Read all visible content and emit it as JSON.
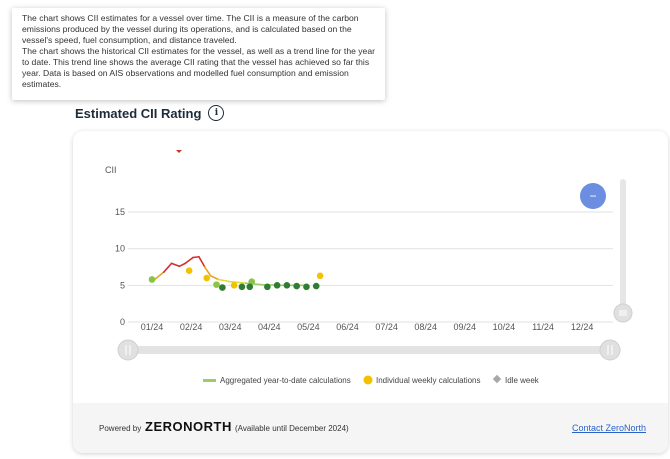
{
  "tooltip": {
    "para1": "The chart shows CII estimates for a vessel over time. The CII is a measure of the carbon emissions produced by the vessel during its operations, and is calculated based on the vessel's speed, fuel consumption, and distance traveled.",
    "para2": "The chart shows the historical CII estimates for the vessel, as well as a trend line for the year to date. This trend line shows the average CII rating that the vessel has achieved so far this year. Data is based on AIS observations and modelled fuel consumption and emission estimates."
  },
  "heading": {
    "title": "Estimated CII Rating",
    "info_icon": "i"
  },
  "zoom_button": {
    "symbol": "−",
    "color": "#6b8ee0"
  },
  "colors": {
    "aggregated_line": "#9ccc65",
    "weekly_yellow": "#f2c200",
    "idle_grey": "#a8a8a8",
    "dark_green": "#2e7d32",
    "light_green": "#8bc34a",
    "red_segment": "#d32f2f",
    "grid": "#e2e2e2"
  },
  "chart_data": {
    "type": "line",
    "ylabel": "CII",
    "ylim": [
      0,
      17
    ],
    "y_ticks": [
      "0",
      "5",
      "10",
      "15"
    ],
    "y_tick_values": [
      0,
      5,
      10,
      15
    ],
    "x_ticks": [
      "01/24",
      "02/24",
      "03/24",
      "04/24",
      "05/24",
      "06/24",
      "07/24",
      "08/24",
      "09/24",
      "10/24",
      "11/24",
      "12/24"
    ],
    "series": [
      {
        "name": "Aggregated year-to-date calculations",
        "points": [
          [
            0.0,
            5.5
          ],
          [
            0.3,
            6.8
          ],
          [
            0.5,
            8.0
          ],
          [
            0.7,
            7.6
          ],
          [
            0.85,
            8.0
          ],
          [
            1.05,
            8.8
          ],
          [
            1.2,
            8.9
          ],
          [
            1.35,
            7.5
          ],
          [
            1.5,
            6.3
          ],
          [
            1.7,
            5.8
          ],
          [
            2.0,
            5.5
          ],
          [
            2.4,
            5.3
          ],
          [
            2.8,
            5.1
          ],
          [
            3.3,
            5.0
          ],
          [
            3.8,
            5.0
          ],
          [
            4.0,
            5.0
          ]
        ]
      },
      {
        "name": "Individual weekly calculations",
        "points": [
          [
            0.0,
            5.8
          ],
          [
            0.95,
            7.0
          ],
          [
            1.4,
            6.0
          ],
          [
            1.65,
            5.1
          ],
          [
            2.1,
            5.0
          ],
          [
            2.55,
            5.5
          ],
          [
            4.3,
            6.3
          ]
        ]
      },
      {
        "name": "Idle week",
        "points": []
      }
    ],
    "weekly_dark_points": [
      [
        1.8,
        4.7
      ],
      [
        2.3,
        4.8
      ],
      [
        2.5,
        4.8
      ],
      [
        2.95,
        4.8
      ],
      [
        3.2,
        5.0
      ],
      [
        3.45,
        5.0
      ],
      [
        3.7,
        4.9
      ],
      [
        3.95,
        4.8
      ],
      [
        4.2,
        4.9
      ]
    ]
  },
  "footer": {
    "powered_by": "Powered by",
    "brand": "ZERONORTH",
    "availability": "(Available until December 2024)",
    "contact": "Contact ZeroNorth"
  }
}
